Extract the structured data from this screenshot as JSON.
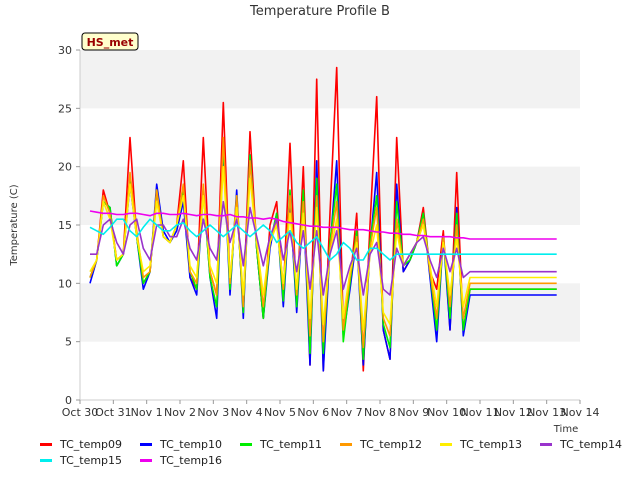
{
  "chart_data": {
    "type": "line",
    "title": "Temperature Profile B",
    "xlabel": "Time",
    "ylabel": "Temperature (C)",
    "badge": "HS_met",
    "x_ticks": [
      "Oct 30",
      "Oct 31",
      "Nov 1",
      "Nov 2",
      "Nov 3",
      "Nov 4",
      "Nov 5",
      "Nov 6",
      "Nov 7",
      "Nov 8",
      "Nov 9",
      "Nov 10",
      "Nov 11",
      "Nov 12",
      "Nov 13",
      "Nov 14"
    ],
    "xlim": [
      0,
      15
    ],
    "ylim": [
      0,
      30
    ],
    "y_ticks": [
      0,
      5,
      10,
      15,
      20,
      25,
      30
    ],
    "grid": "horizontal bands",
    "colors": {
      "TC_temp09": "#ff0000",
      "TC_temp10": "#0000ff",
      "TC_temp11": "#00ee00",
      "TC_temp12": "#ff9900",
      "TC_temp13": "#ffee00",
      "TC_temp14": "#9933cc",
      "TC_temp15": "#00eeee",
      "TC_temp16": "#ee00ee"
    },
    "legend_rows": [
      [
        "TC_temp09",
        "TC_temp10",
        "TC_temp11",
        "TC_temp12",
        "TC_temp13",
        "TC_temp14"
      ],
      [
        "TC_temp15",
        "TC_temp16"
      ]
    ],
    "x": [
      0.3,
      0.5,
      0.7,
      0.9,
      1.1,
      1.3,
      1.5,
      1.7,
      1.9,
      2.1,
      2.3,
      2.5,
      2.7,
      2.9,
      3.1,
      3.3,
      3.5,
      3.7,
      3.9,
      4.1,
      4.3,
      4.5,
      4.7,
      4.9,
      5.1,
      5.3,
      5.5,
      5.7,
      5.9,
      6.1,
      6.3,
      6.5,
      6.7,
      6.9,
      7.1,
      7.3,
      7.5,
      7.7,
      7.9,
      8.1,
      8.3,
      8.5,
      8.7,
      8.9,
      9.1,
      9.3,
      9.5,
      9.7,
      9.9,
      10.1,
      10.3,
      10.5,
      10.7,
      10.9,
      11.1,
      11.3,
      11.5,
      11.7,
      11.9,
      12.1,
      12.3,
      12.5,
      12.7,
      12.9,
      13.1,
      13.3,
      13.5,
      13.7,
      13.9,
      14.1,
      14.3
    ],
    "series": [
      {
        "name": "TC_temp09",
        "values": [
          10.5,
          12.0,
          18.0,
          16.0,
          12.0,
          12.5,
          22.5,
          14.0,
          10.0,
          11.0,
          18.0,
          14.0,
          13.5,
          15.0,
          20.5,
          10.5,
          9.5,
          22.5,
          11.0,
          9.0,
          25.5,
          10.0,
          17.0,
          8.0,
          23.0,
          13.0,
          7.0,
          15.0,
          17.0,
          9.0,
          22.0,
          8.0,
          20.0,
          3.0,
          27.5,
          2.5,
          16.0,
          28.5,
          6.0,
          10.0,
          16.0,
          2.5,
          15.0,
          26.0,
          6.0,
          3.5,
          22.5,
          11.0,
          12.0,
          13.5,
          16.5,
          11.0,
          9.5,
          14.5,
          6.0,
          19.5,
          6.0,
          9.5,
          9.5,
          9.5,
          9.5,
          9.5,
          9.5,
          9.5,
          9.5,
          9.5,
          9.5,
          9.5,
          9.5,
          9.5,
          9.5
        ]
      },
      {
        "name": "TC_temp10",
        "values": [
          10.0,
          12.0,
          17.0,
          16.5,
          11.5,
          12.5,
          18.5,
          14.0,
          9.5,
          11.0,
          18.5,
          14.5,
          13.5,
          14.5,
          17.0,
          10.5,
          9.0,
          18.0,
          10.5,
          7.0,
          21.5,
          9.0,
          18.0,
          7.0,
          21.0,
          13.0,
          7.0,
          13.0,
          16.0,
          8.0,
          17.0,
          7.5,
          17.0,
          3.0,
          20.5,
          2.5,
          13.0,
          20.5,
          5.5,
          9.5,
          14.0,
          3.0,
          13.0,
          19.5,
          6.0,
          3.5,
          18.5,
          11.0,
          12.0,
          13.5,
          16.0,
          10.5,
          5.0,
          14.0,
          6.0,
          16.5,
          5.5,
          9.0,
          9.0,
          9.0,
          9.0,
          9.0,
          9.0,
          9.0,
          9.0,
          9.0,
          9.0,
          9.0,
          9.0,
          9.0,
          9.0
        ]
      },
      {
        "name": "TC_temp11",
        "values": [
          10.5,
          12.0,
          17.0,
          16.5,
          11.5,
          12.5,
          19.0,
          14.0,
          10.0,
          11.0,
          18.0,
          14.0,
          13.5,
          15.0,
          18.0,
          11.0,
          9.5,
          18.0,
          10.5,
          8.0,
          22.0,
          9.5,
          17.5,
          7.5,
          21.0,
          13.0,
          7.0,
          13.5,
          16.0,
          8.5,
          18.0,
          8.0,
          18.0,
          4.0,
          19.0,
          4.0,
          13.5,
          18.5,
          5.0,
          10.0,
          14.5,
          3.5,
          13.5,
          17.5,
          6.5,
          4.5,
          17.0,
          11.5,
          12.0,
          13.5,
          16.0,
          11.0,
          6.0,
          14.0,
          7.0,
          16.0,
          6.0,
          9.5,
          9.5,
          9.5,
          9.5,
          9.5,
          9.5,
          9.5,
          9.5,
          9.5,
          9.5,
          9.5,
          9.5,
          9.5,
          9.5
        ]
      },
      {
        "name": "TC_temp12",
        "values": [
          10.5,
          12.0,
          17.5,
          16.0,
          12.0,
          12.5,
          19.5,
          14.5,
          10.5,
          11.0,
          18.0,
          14.0,
          13.5,
          15.0,
          18.5,
          11.0,
          10.0,
          18.5,
          11.0,
          9.0,
          22.5,
          10.0,
          17.5,
          8.0,
          20.5,
          13.5,
          8.0,
          13.5,
          15.5,
          9.5,
          17.5,
          9.0,
          17.0,
          5.5,
          17.5,
          5.0,
          13.0,
          17.0,
          6.0,
          10.5,
          14.0,
          4.5,
          13.0,
          16.5,
          7.0,
          5.5,
          15.5,
          11.5,
          12.5,
          13.5,
          15.5,
          11.0,
          7.0,
          14.0,
          8.0,
          15.0,
          7.0,
          10.0,
          10.0,
          10.0,
          10.0,
          10.0,
          10.0,
          10.0,
          10.0,
          10.0,
          10.0,
          10.0,
          10.0,
          10.0,
          10.0
        ]
      },
      {
        "name": "TC_temp13",
        "values": [
          11.0,
          12.0,
          17.0,
          15.5,
          12.0,
          12.5,
          18.5,
          14.0,
          11.0,
          11.5,
          17.0,
          14.0,
          13.5,
          15.0,
          17.5,
          11.5,
          10.5,
          17.5,
          11.5,
          10.0,
          20.0,
          10.5,
          16.5,
          9.0,
          19.0,
          13.5,
          9.0,
          13.5,
          15.0,
          10.0,
          16.0,
          9.5,
          16.0,
          7.0,
          16.5,
          6.5,
          12.5,
          15.5,
          7.0,
          11.0,
          13.5,
          6.0,
          12.5,
          15.0,
          7.5,
          6.5,
          14.5,
          11.5,
          12.5,
          13.5,
          15.0,
          11.5,
          8.0,
          13.5,
          9.0,
          14.0,
          8.0,
          10.5,
          10.5,
          10.5,
          10.5,
          10.5,
          10.5,
          10.5,
          10.5,
          10.5,
          10.5,
          10.5,
          10.5,
          10.5,
          10.5
        ]
      },
      {
        "name": "TC_temp14",
        "values": [
          12.5,
          12.5,
          15.0,
          15.5,
          13.5,
          12.5,
          15.0,
          15.5,
          13.0,
          12.0,
          15.0,
          15.0,
          14.0,
          14.0,
          15.5,
          13.0,
          12.0,
          15.5,
          13.0,
          12.0,
          17.0,
          13.5,
          15.5,
          11.5,
          16.5,
          14.0,
          11.5,
          14.0,
          15.5,
          12.0,
          14.5,
          11.0,
          14.5,
          9.5,
          14.5,
          9.0,
          12.5,
          14.5,
          9.5,
          11.5,
          13.0,
          9.0,
          12.5,
          13.5,
          9.5,
          9.0,
          13.0,
          11.5,
          12.5,
          13.5,
          14.0,
          12.0,
          10.5,
          13.0,
          11.0,
          13.0,
          10.5,
          11.0,
          11.0,
          11.0,
          11.0,
          11.0,
          11.0,
          11.0,
          11.0,
          11.0,
          11.0,
          11.0,
          11.0,
          11.0,
          11.0
        ]
      },
      {
        "name": "TC_temp15",
        "values": [
          14.8,
          14.5,
          14.2,
          14.8,
          15.5,
          15.5,
          14.5,
          14.0,
          14.8,
          15.5,
          15.0,
          14.5,
          14.5,
          15.0,
          15.2,
          14.5,
          14.0,
          14.5,
          15.0,
          14.5,
          14.0,
          14.5,
          15.0,
          14.5,
          14.0,
          14.5,
          15.0,
          14.5,
          13.5,
          14.0,
          14.5,
          13.5,
          13.0,
          13.5,
          14.0,
          13.0,
          12.0,
          12.5,
          13.5,
          13.0,
          12.0,
          12.0,
          13.0,
          13.0,
          12.5,
          12.0,
          12.5,
          12.5,
          12.5,
          12.5,
          12.5,
          12.5,
          12.5,
          12.5,
          12.5,
          12.5,
          12.5,
          12.5,
          12.5,
          12.5,
          12.5,
          12.5,
          12.5,
          12.5,
          12.5,
          12.5,
          12.5,
          12.5,
          12.5,
          12.5,
          12.5
        ]
      },
      {
        "name": "TC_temp16",
        "values": [
          16.2,
          16.1,
          16.0,
          16.0,
          15.9,
          15.9,
          16.0,
          16.0,
          15.9,
          15.8,
          16.0,
          16.0,
          15.9,
          15.9,
          16.0,
          15.9,
          15.8,
          15.9,
          15.9,
          15.8,
          15.8,
          15.9,
          15.7,
          15.7,
          15.6,
          15.6,
          15.5,
          15.6,
          15.5,
          15.3,
          15.2,
          15.1,
          15.0,
          14.9,
          14.9,
          14.8,
          14.8,
          14.8,
          14.7,
          14.6,
          14.6,
          14.6,
          14.5,
          14.4,
          14.4,
          14.3,
          14.3,
          14.2,
          14.2,
          14.1,
          14.1,
          14.0,
          14.0,
          14.0,
          14.0,
          13.9,
          13.9,
          13.8,
          13.8,
          13.8,
          13.8,
          13.8,
          13.8,
          13.8,
          13.8,
          13.8,
          13.8,
          13.8,
          13.8,
          13.8,
          13.8
        ]
      }
    ]
  }
}
